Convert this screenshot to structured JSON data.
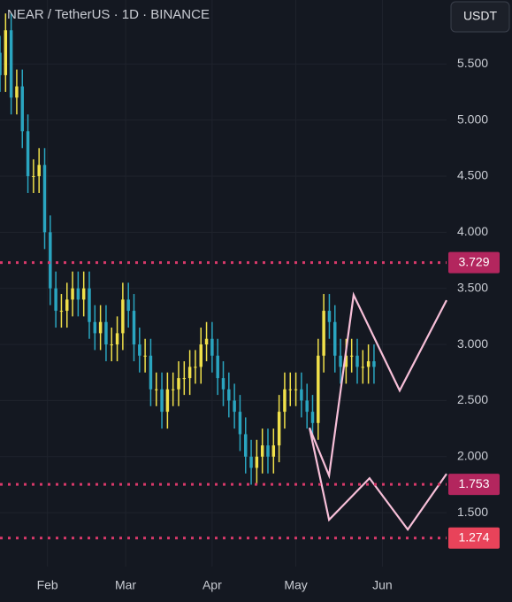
{
  "chart_data": {
    "type": "ohlc",
    "title": "NEAR / TetherUS · 1D · BINANCE",
    "currency_button": "USDT",
    "x": [
      0,
      2,
      4,
      6,
      8,
      10,
      12,
      14,
      16,
      18,
      20,
      22,
      24,
      26,
      28,
      30,
      32,
      34,
      36,
      38,
      40,
      42,
      44,
      46,
      48,
      50,
      52,
      54,
      56,
      58,
      60,
      62,
      64,
      66,
      68,
      70,
      72,
      74,
      76,
      78,
      80,
      82,
      84,
      86,
      88,
      90,
      92,
      94,
      96,
      98,
      100,
      102,
      104,
      106,
      108,
      110,
      112,
      114,
      116,
      118,
      120,
      122,
      124,
      126,
      128,
      130,
      132,
      134
    ],
    "open": [
      5.6,
      5.4,
      5.8,
      5.2,
      5.3,
      4.9,
      4.5,
      4.5,
      4.6,
      4.0,
      3.5,
      3.3,
      3.3,
      3.4,
      3.5,
      3.4,
      3.5,
      3.2,
      3.1,
      3.2,
      3.0,
      3.0,
      3.1,
      3.4,
      3.3,
      3.0,
      2.9,
      2.9,
      2.6,
      2.6,
      2.4,
      2.6,
      2.6,
      2.7,
      2.7,
      2.8,
      2.8,
      3.0,
      3.05,
      2.9,
      2.7,
      2.6,
      2.5,
      2.4,
      2.2,
      2.0,
      1.9,
      2.0,
      2.1,
      2.0,
      2.1,
      2.4,
      2.6,
      2.6,
      2.6,
      2.5,
      2.4,
      2.3,
      2.9,
      3.3,
      3.2,
      2.9,
      2.8,
      2.9,
      2.9,
      2.8,
      2.8,
      2.85
    ],
    "high": [
      5.75,
      5.95,
      5.95,
      5.45,
      5.45,
      5.05,
      4.65,
      4.75,
      4.75,
      4.15,
      3.65,
      3.45,
      3.55,
      3.65,
      3.65,
      3.65,
      3.65,
      3.35,
      3.35,
      3.35,
      3.15,
      3.25,
      3.55,
      3.55,
      3.45,
      3.15,
      3.05,
      3.05,
      2.75,
      2.75,
      2.75,
      2.75,
      2.85,
      2.85,
      2.95,
      2.95,
      3.15,
      3.2,
      3.2,
      3.05,
      2.85,
      2.75,
      2.65,
      2.55,
      2.35,
      2.15,
      2.15,
      2.25,
      2.25,
      2.25,
      2.55,
      2.75,
      2.75,
      2.75,
      2.75,
      2.65,
      2.55,
      3.05,
      3.45,
      3.45,
      3.35,
      3.05,
      3.05,
      3.05,
      3.05,
      2.95,
      3.0,
      3.0
    ],
    "low": [
      5.25,
      5.25,
      5.05,
      5.05,
      4.75,
      4.35,
      4.35,
      4.35,
      3.85,
      3.35,
      3.15,
      3.15,
      3.15,
      3.25,
      3.25,
      3.25,
      3.05,
      2.95,
      2.95,
      2.85,
      2.85,
      2.85,
      2.95,
      3.15,
      2.85,
      2.75,
      2.75,
      2.45,
      2.45,
      2.25,
      2.25,
      2.45,
      2.45,
      2.55,
      2.55,
      2.65,
      2.65,
      2.85,
      2.75,
      2.55,
      2.45,
      2.35,
      2.25,
      2.05,
      1.85,
      1.75,
      1.75,
      1.85,
      1.85,
      1.85,
      1.95,
      2.25,
      2.45,
      2.45,
      2.35,
      2.25,
      2.15,
      2.15,
      2.75,
      3.05,
      2.75,
      2.65,
      2.65,
      2.75,
      2.65,
      2.65,
      2.65,
      2.65
    ],
    "close": [
      5.4,
      5.8,
      5.2,
      5.3,
      4.9,
      4.5,
      4.5,
      4.6,
      4.0,
      3.5,
      3.3,
      3.3,
      3.4,
      3.5,
      3.4,
      3.5,
      3.2,
      3.1,
      3.2,
      3.0,
      3.0,
      3.1,
      3.4,
      3.3,
      3.0,
      2.9,
      2.9,
      2.6,
      2.6,
      2.4,
      2.6,
      2.6,
      2.7,
      2.7,
      2.8,
      2.8,
      3.0,
      3.05,
      2.9,
      2.7,
      2.6,
      2.5,
      2.4,
      2.2,
      2.0,
      1.9,
      2.0,
      2.1,
      2.0,
      2.1,
      2.4,
      2.6,
      2.6,
      2.6,
      2.5,
      2.4,
      2.3,
      2.9,
      3.3,
      3.2,
      2.9,
      2.8,
      2.9,
      2.9,
      2.8,
      2.8,
      2.85,
      2.8
    ],
    "up_color": "#f0e04a",
    "down_color": "#2aa5c0",
    "projections": [
      {
        "color": "#f7bfd8",
        "x": [
          110.9,
          117.9,
          126.7,
          143.2,
          160
        ],
        "y": [
          2.257,
          1.831,
          3.441,
          2.589,
          3.394
        ]
      },
      {
        "color": "#f7bfd8",
        "x": [
          110.9,
          117.9,
          132.4,
          146.1,
          160
        ],
        "y": [
          2.257,
          1.437,
          1.808,
          1.35,
          1.847
        ]
      }
    ],
    "levels": [
      3.729,
      1.753,
      1.274
    ],
    "level_colors": [
      "#b3265e",
      "#b3265e",
      "#e8435a"
    ],
    "level_line_color": "#d8396a",
    "xlim": [
      0,
      160
    ],
    "ylim": [
      1.02,
      6.07
    ],
    "xticks": [
      {
        "value": 17,
        "label": "Feb"
      },
      {
        "value": 45,
        "label": "Mar"
      },
      {
        "value": 76,
        "label": "Apr"
      },
      {
        "value": 106,
        "label": "May"
      },
      {
        "value": 137,
        "label": "Jun"
      }
    ],
    "yticks": [
      {
        "value": 1.5,
        "label": "1.500"
      },
      {
        "value": 2,
        "label": "2.000"
      },
      {
        "value": 2.5,
        "label": "2.500"
      },
      {
        "value": 3,
        "label": "3.000"
      },
      {
        "value": 3.5,
        "label": "3.500"
      },
      {
        "value": 4,
        "label": "4.000"
      },
      {
        "value": 4.5,
        "label": "4.500"
      },
      {
        "value": 5,
        "label": "5.000"
      },
      {
        "value": 5.5,
        "label": "5.500"
      }
    ],
    "grid": true
  }
}
